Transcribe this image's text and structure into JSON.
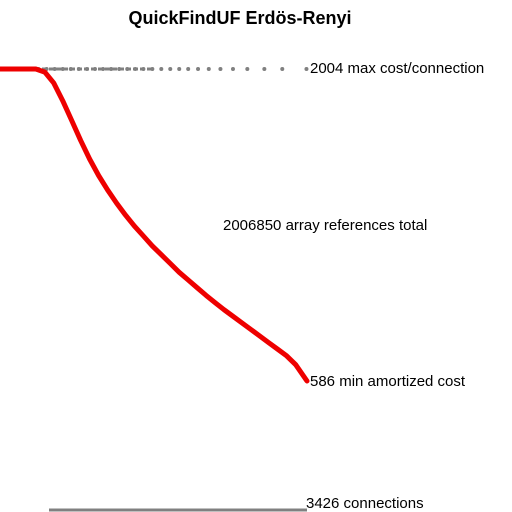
{
  "chart_data": {
    "type": "scatter",
    "title": "QuickFindUF Erdös-Renyi",
    "xlim": [
      0,
      3426
    ],
    "grid": false,
    "colors": {
      "max_cost": "#808080",
      "amortized": "#ee0000",
      "baseline": "#808080"
    },
    "series": [
      {
        "key": "max_cost",
        "points_x": [
          0,
          80,
          160,
          250,
          340,
          430,
          520,
          610,
          700,
          790,
          880,
          970,
          1060,
          1150,
          1240,
          1330,
          1420,
          1510,
          1600,
          1700,
          1800,
          1900,
          2000,
          2100,
          2210,
          2330,
          2460,
          2600,
          2760,
          2950,
          3150,
          3420
        ],
        "value": 2004
      },
      {
        "key": "amortized",
        "x": [
          0,
          200,
          400,
          500,
          600,
          700,
          800,
          900,
          1000,
          1100,
          1200,
          1300,
          1400,
          1500,
          1600,
          1700,
          1800,
          1900,
          2000,
          2100,
          2200,
          2300,
          2400,
          2500,
          2600,
          2700,
          2800,
          2900,
          3000,
          3100,
          3200,
          3300,
          3426
        ],
        "y": [
          2004,
          2004,
          2004,
          1990,
          1940,
          1860,
          1770,
          1680,
          1595,
          1520,
          1455,
          1395,
          1340,
          1290,
          1245,
          1200,
          1160,
          1120,
          1080,
          1045,
          1010,
          975,
          942,
          910,
          880,
          850,
          820,
          790,
          760,
          730,
          700,
          660,
          586
        ]
      }
    ],
    "annotations": {
      "max_cost": "2004 max cost/connection",
      "total": "2006850 array references total",
      "min_amortized": "586 min amortized cost",
      "connections": "3426 connections"
    }
  }
}
